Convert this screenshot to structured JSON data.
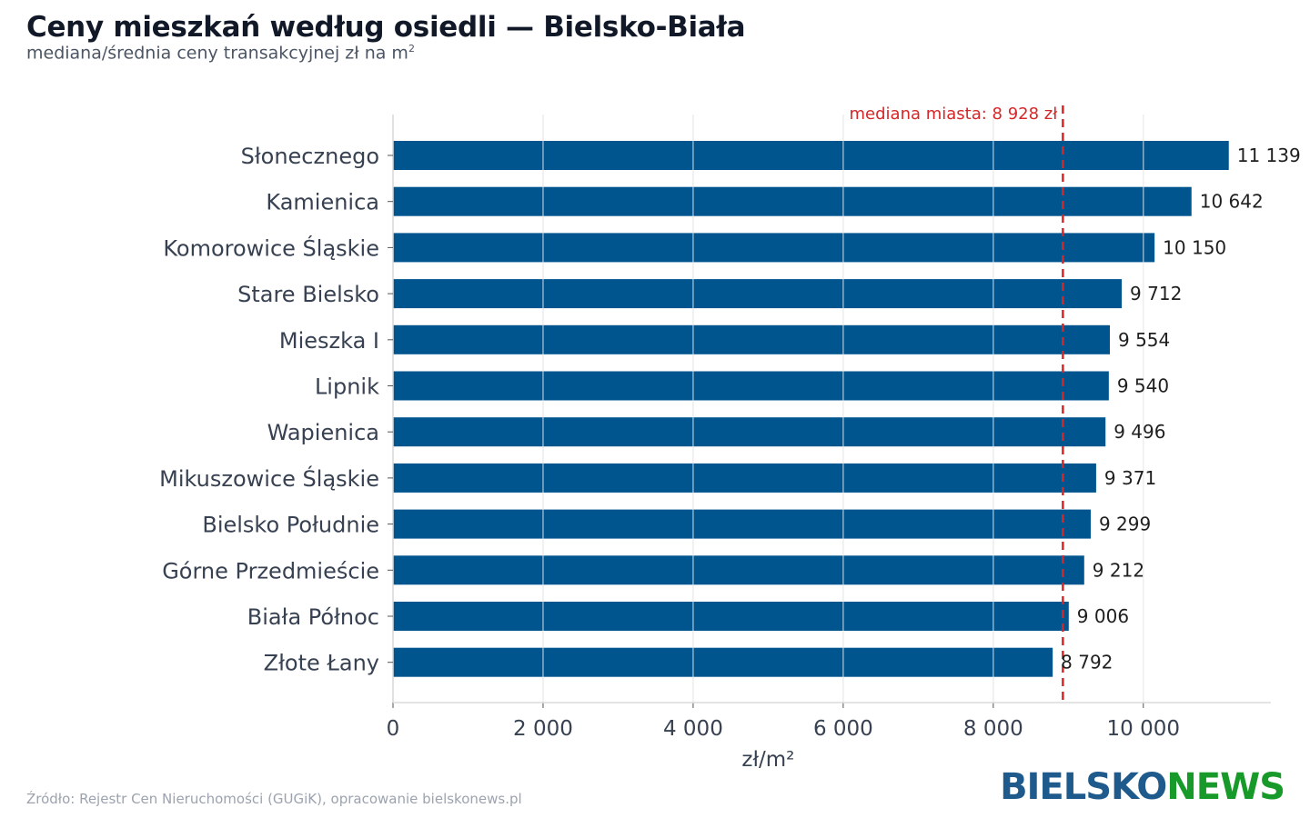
{
  "header": {
    "title": "Ceny mieszkań według osiedli — Bielsko-Biała",
    "subtitle": "mediana/średnia ceny transakcyjnej zł na m",
    "subtitle_sup": "2"
  },
  "footer": {
    "source": "Źródło: Rejestr Cen Nieruchomości (GUGiK), opracowanie bielskonews.pl",
    "logo_part1": "BIELSKO",
    "logo_part2": "NEWS"
  },
  "colors": {
    "bar": "#00558f",
    "median_line": "#d62728",
    "grid": "#dcdcdc",
    "text": "#374151"
  },
  "chart_data": {
    "type": "bar",
    "orientation": "horizontal",
    "categories": [
      "Słonecznego",
      "Kamienica",
      "Komorowice Śląskie",
      "Stare Bielsko",
      "Mieszka I",
      "Lipnik",
      "Wapienica",
      "Mikuszowice Śląskie",
      "Bielsko Południe",
      "Górne Przedmieście",
      "Biała Północ",
      "Złote Łany"
    ],
    "values": [
      11139,
      10642,
      10150,
      9712,
      9554,
      9540,
      9496,
      9371,
      9299,
      9212,
      9006,
      8792
    ],
    "value_labels": [
      "11 139",
      "10 642",
      "10 150",
      "9 712",
      "9 554",
      "9 540",
      "9 496",
      "9 371",
      "9 299",
      "9 212",
      "9 006",
      "8 792"
    ],
    "xlabel": "zł/m²",
    "ylabel": "",
    "xlim": [
      0,
      11700
    ],
    "xticks": [
      0,
      2000,
      4000,
      6000,
      8000,
      10000
    ],
    "xtick_labels": [
      "0",
      "2 000",
      "4 000",
      "6 000",
      "8 000",
      "10 000"
    ],
    "grid": true,
    "reference_line": {
      "value": 8928,
      "label": "mediana miasta: 8 928 zł",
      "style": "dashed"
    }
  }
}
